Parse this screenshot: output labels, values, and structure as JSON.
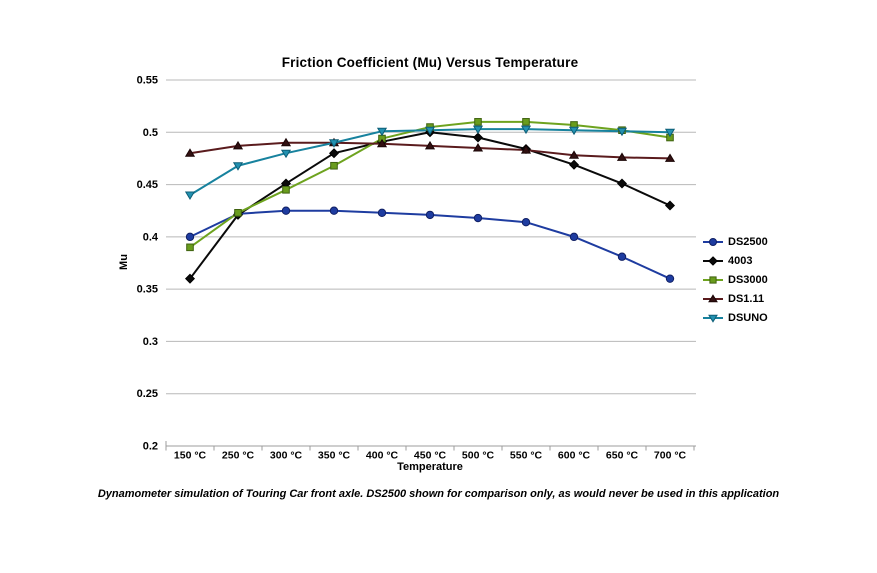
{
  "chart": {
    "title": "Friction Coefficient (Mu) Versus Temperature",
    "xlabel": "Temperature",
    "ylabel": "Mu",
    "caption": "Dynamometer simulation of Touring Car front axle. DS2500 shown for comparison only, as would never be used in this application"
  },
  "chart_data": {
    "type": "line",
    "title": "Friction Coefficient (Mu) Versus Temperature",
    "xlabel": "Temperature",
    "ylabel": "Mu",
    "categories": [
      "150 °C",
      "250 °C",
      "300 °C",
      "350 °C",
      "400 °C",
      "450 °C",
      "500 °C",
      "550 °C",
      "600 °C",
      "650 °C",
      "700 °C"
    ],
    "series": [
      {
        "name": "DS2500",
        "marker": "circle",
        "color": "#1e3ca0",
        "marker_fill": "#1e3ca0",
        "marker_edge": "#101f63",
        "values": [
          0.4,
          0.422,
          0.425,
          0.425,
          0.423,
          0.421,
          0.418,
          0.414,
          0.4,
          0.381,
          0.36
        ]
      },
      {
        "name": "4003",
        "marker": "diamond",
        "color": "#0a0a0a",
        "marker_fill": "#0a0a0a",
        "marker_edge": "#000000",
        "values": [
          0.36,
          0.421,
          0.451,
          0.48,
          0.491,
          0.5,
          0.495,
          0.484,
          0.469,
          0.451,
          0.43
        ]
      },
      {
        "name": "DS3000",
        "marker": "square",
        "color": "#6ea31f",
        "marker_fill": "#699c1d",
        "marker_edge": "#3f6210",
        "values": [
          0.39,
          0.423,
          0.445,
          0.468,
          0.494,
          0.505,
          0.51,
          0.51,
          0.507,
          0.502,
          0.495
        ]
      },
      {
        "name": "DS1.11",
        "marker": "triangle-up",
        "color": "#5a1b1d",
        "marker_fill": "#321011",
        "marker_edge": "#1a0506",
        "values": [
          0.48,
          0.487,
          0.49,
          0.49,
          0.489,
          0.487,
          0.485,
          0.483,
          0.478,
          0.476,
          0.475
        ]
      },
      {
        "name": "DSUNO",
        "marker": "triangle-down",
        "color": "#17829e",
        "marker_fill": "#2391b0",
        "marker_edge": "#0d5e77",
        "values": [
          0.44,
          0.468,
          0.48,
          0.49,
          0.501,
          0.502,
          0.503,
          0.503,
          0.502,
          0.501,
          0.5
        ]
      }
    ],
    "ylim": [
      0.2,
      0.55
    ],
    "ytick_step": 0.05,
    "grid": "horizontal",
    "gridline_color": "#b8b8b8",
    "axis_color": "#9c9c9c",
    "legend_position": "right"
  }
}
